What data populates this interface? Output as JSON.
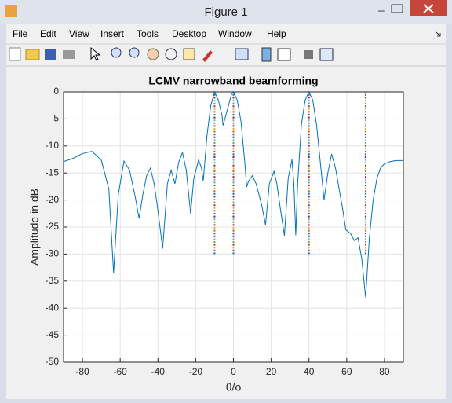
{
  "window": {
    "title": "Figure 1",
    "menu": [
      "File",
      "Edit",
      "View",
      "Insert",
      "Tools",
      "Desktop",
      "Window",
      "Help"
    ]
  },
  "chart_data": {
    "type": "line",
    "title": "LCMV narrowband beamforming",
    "x_label": "θ/o",
    "y_label": "Amplitude in dB",
    "x": [
      -90,
      -85,
      -80,
      -75,
      -70,
      -66,
      -63.5,
      -61,
      -58,
      -55,
      -52,
      -50,
      -48,
      -46,
      -44,
      -42,
      -40,
      -37.5,
      -35,
      -33,
      -31,
      -29,
      -27,
      -25,
      -22.7,
      -21,
      -18.5,
      -17,
      -16,
      -14,
      -12,
      -10,
      -8,
      -6,
      -5.5,
      -3,
      -1,
      0,
      2,
      4,
      6,
      7,
      8,
      10,
      12,
      15,
      17,
      19,
      21.5,
      23,
      25,
      27,
      29,
      31,
      32,
      33,
      34,
      36,
      38,
      40,
      42,
      44,
      46,
      48,
      50,
      52,
      54,
      56,
      58,
      59.5,
      62,
      64,
      66,
      68,
      70,
      72,
      74,
      76,
      78,
      80,
      83,
      86,
      90
    ],
    "series": [
      {
        "name": "pattern",
        "color": "#0072bd",
        "values": [
          -12.9,
          -12.3,
          -11.4,
          -11,
          -12.6,
          -18,
          -33.5,
          -19,
          -12.8,
          -14.5,
          -19.5,
          -23.4,
          -19,
          -15.5,
          -14.1,
          -17,
          -22,
          -29,
          -17,
          -14.5,
          -17,
          -13,
          -11.2,
          -14.5,
          -22.5,
          -16,
          -12.6,
          -14,
          -16.5,
          -8,
          -2.5,
          0,
          -1.5,
          -4.5,
          -6.2,
          -3,
          -0.4,
          0,
          -1.5,
          -5.5,
          -13,
          -17.6,
          -16.5,
          -15.5,
          -17,
          -21,
          -24.6,
          -17,
          -14.7,
          -17,
          -22,
          -26.6,
          -16,
          -12.5,
          -17,
          -26.5,
          -17,
          -6,
          -1.5,
          0,
          -1.5,
          -6,
          -13,
          -20,
          -15,
          -11.5,
          -14,
          -18,
          -22,
          -25.5,
          -26.2,
          -27.5,
          -27,
          -31,
          -38,
          -27,
          -20,
          -16,
          -14,
          -13.3,
          -12.9,
          -12.7,
          -12.7
        ]
      }
    ],
    "vertical_lines": {
      "x": [
        -10,
        0,
        40,
        70
      ],
      "ymin": -30,
      "ymax": 0,
      "colors": [
        "#0072bd",
        "#d95319",
        "#edb120",
        "#7e2f8e",
        "#77ac30",
        "#4dbeee",
        "#a2142f"
      ]
    },
    "xlim": [
      -90,
      90
    ],
    "ylim": [
      -50,
      0
    ],
    "xticks": [
      -80,
      -60,
      -40,
      -20,
      0,
      20,
      40,
      60,
      80
    ],
    "yticks": [
      -50,
      -45,
      -40,
      -35,
      -30,
      -25,
      -20,
      -15,
      -10,
      -5,
      0
    ],
    "grid": true
  }
}
